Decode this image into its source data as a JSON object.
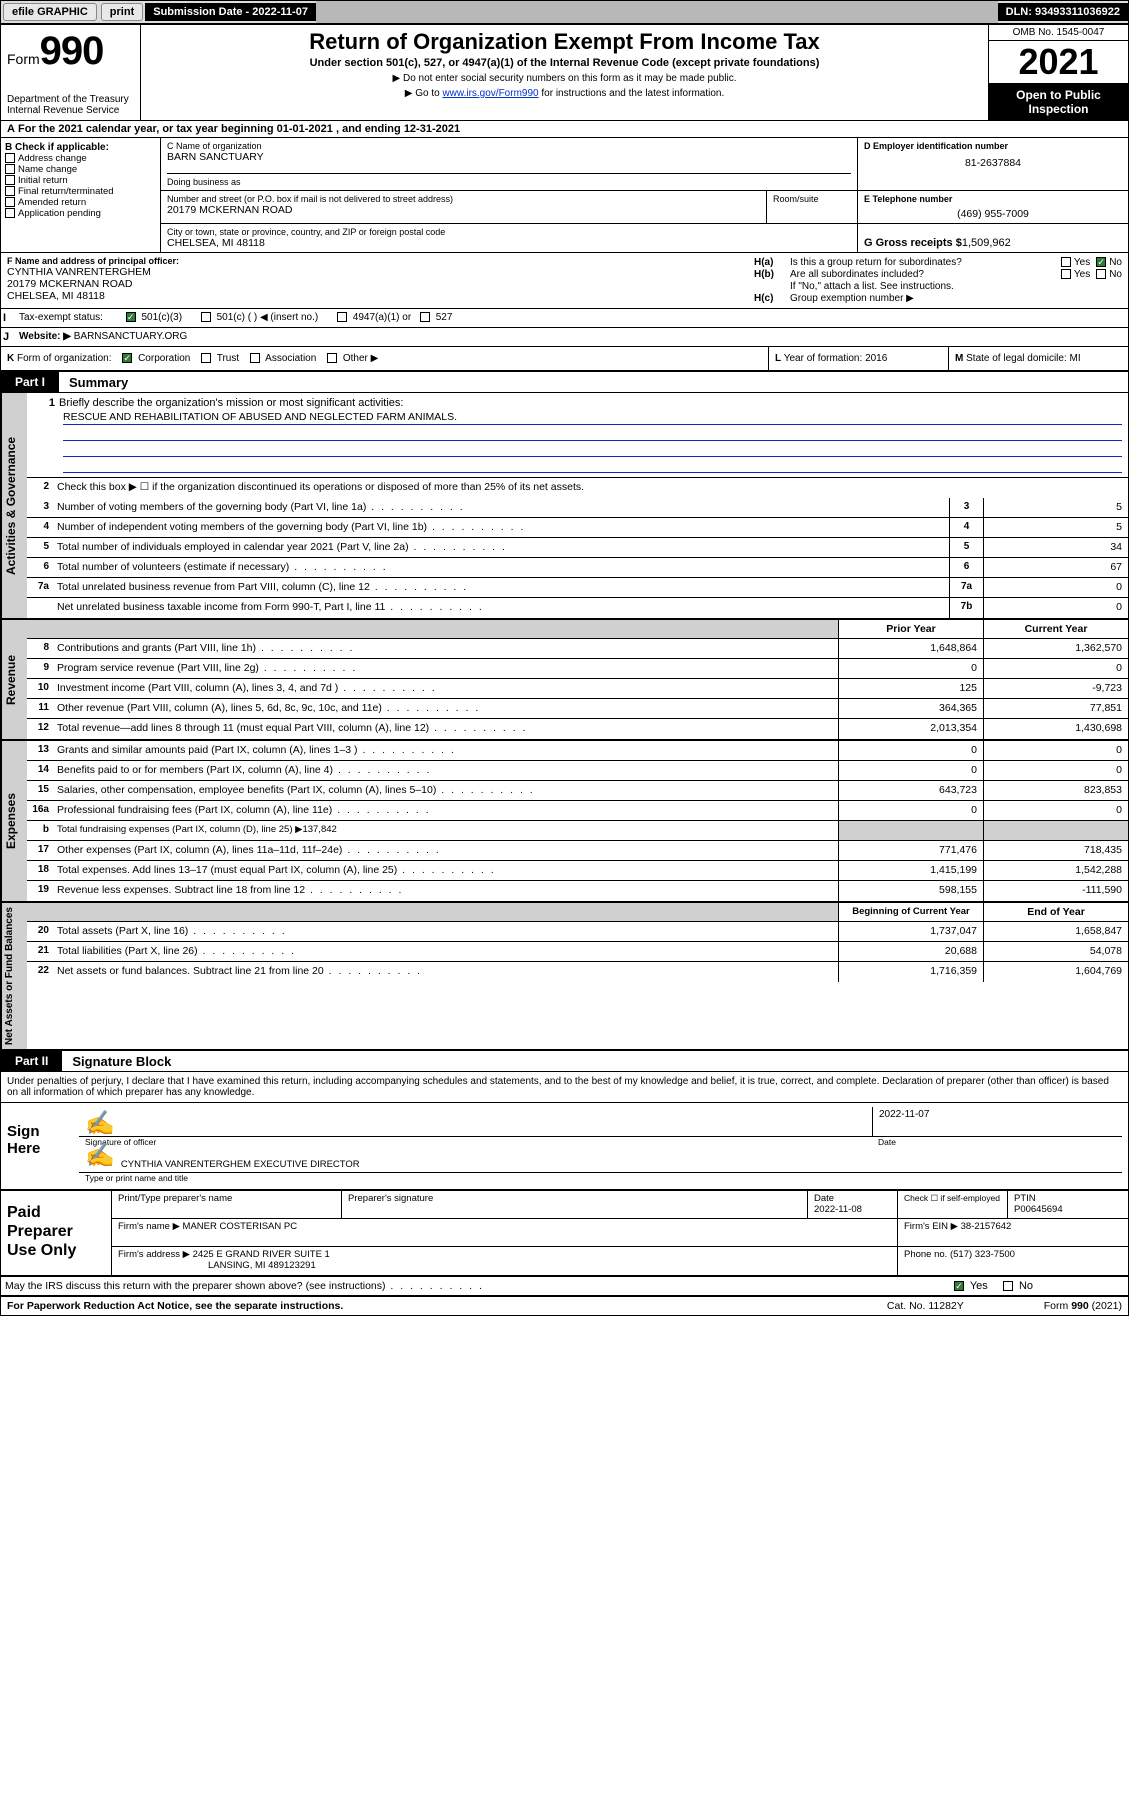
{
  "topbar": {
    "efile": "efile GRAPHIC",
    "print": "print",
    "sub_label": "Submission Date - ",
    "sub_date": "2022-11-07",
    "dln_label": "DLN: ",
    "dln": "93493311036922"
  },
  "header": {
    "form_word": "Form",
    "form_num": "990",
    "dept": "Department of the Treasury",
    "irs": "Internal Revenue Service",
    "title": "Return of Organization Exempt From Income Tax",
    "subtitle": "Under section 501(c), 527, or 4947(a)(1) of the Internal Revenue Code (except private foundations)",
    "note1": "▶ Do not enter social security numbers on this form as it may be made public.",
    "note2_pre": "▶ Go to ",
    "note2_link": "www.irs.gov/Form990",
    "note2_post": " for instructions and the latest information.",
    "omb": "OMB No. 1545-0047",
    "year": "2021",
    "open": "Open to Public Inspection"
  },
  "row_a": {
    "a": "A",
    "text": "For the 2021 calendar year, or tax year beginning ",
    "begin": "01-01-2021",
    "mid": " , and ending ",
    "end": "12-31-2021"
  },
  "col_b": {
    "label": "B Check if applicable:",
    "items": [
      "Address change",
      "Name change",
      "Initial return",
      "Final return/terminated",
      "Amended return",
      "Application pending"
    ]
  },
  "col_c": {
    "c_label": "C Name of organization",
    "org_name": "BARN SANCTUARY",
    "dba_label": "Doing business as",
    "dba": "",
    "street_label": "Number and street (or P.O. box if mail is not delivered to street address)",
    "room_label": "Room/suite",
    "street": "20179 MCKERNAN ROAD",
    "city_label": "City or town, state or province, country, and ZIP or foreign postal code",
    "city": "CHELSEA, MI  48118"
  },
  "col_d": {
    "d_label": "D Employer identification number",
    "ein": "81-2637884",
    "e_label": "E Telephone number",
    "phone": "(469) 955-7009",
    "g_label": "G Gross receipts $ ",
    "gross": "1,509,962"
  },
  "row_f": {
    "f_label": "F Name and address of principal officer:",
    "name": "CYNTHIA VANRENTERGHEM",
    "addr1": "20179 MCKERNAN ROAD",
    "addr2": "CHELSEA, MI  48118",
    "ha_label": "H(a)",
    "ha_text": " Is this a group return for subordinates?",
    "hb_label": "H(b)",
    "hb_text": " Are all subordinates included?",
    "hb_note": "If \"No,\" attach a list. See instructions.",
    "hc_label": "H(c)",
    "hc_text": " Group exemption number ▶",
    "yes": "Yes",
    "no": "No"
  },
  "row_i": {
    "i": "I",
    "label": "Tax-exempt status:",
    "opts": [
      "501(c)(3)",
      "501(c) (  ) ◀ (insert no.)",
      "4947(a)(1) or",
      "527"
    ]
  },
  "row_j": {
    "j": "J",
    "label": "Website: ▶",
    "val": "BARNSANCTUARY.ORG"
  },
  "row_k": {
    "k": "K",
    "label": " Form of organization:",
    "opts": [
      "Corporation",
      "Trust",
      "Association",
      "Other ▶"
    ]
  },
  "row_l": {
    "l": "L",
    "text": " Year of formation: ",
    "val": "2016"
  },
  "row_m": {
    "m": "M",
    "text": " State of legal domicile: ",
    "val": "MI"
  },
  "part1": {
    "tab": "Part I",
    "title": "Summary",
    "side_gov": "Activities & Governance",
    "side_rev": "Revenue",
    "side_exp": "Expenses",
    "side_net": "Net Assets or Fund Balances",
    "l1_label": "Briefly describe the organization's mission or most significant activities:",
    "l1_text": "RESCUE AND REHABILITATION OF ABUSED AND NEGLECTED FARM ANIMALS.",
    "l2": "Check this box ▶ ☐ if the organization discontinued its operations or disposed of more than 25% of its net assets.",
    "rows_gov": [
      {
        "n": "3",
        "t": "Number of voting members of the governing body (Part VI, line 1a)",
        "box": "3",
        "v": "5"
      },
      {
        "n": "4",
        "t": "Number of independent voting members of the governing body (Part VI, line 1b)",
        "box": "4",
        "v": "5"
      },
      {
        "n": "5",
        "t": "Total number of individuals employed in calendar year 2021 (Part V, line 2a)",
        "box": "5",
        "v": "34"
      },
      {
        "n": "6",
        "t": "Total number of volunteers (estimate if necessary)",
        "box": "6",
        "v": "67"
      },
      {
        "n": "7a",
        "t": "Total unrelated business revenue from Part VIII, column (C), line 12",
        "box": "7a",
        "v": "0"
      },
      {
        "n": "",
        "t": "Net unrelated business taxable income from Form 990-T, Part I, line 11",
        "box": "7b",
        "v": "0"
      }
    ],
    "hdr_prior": "Prior Year",
    "hdr_current": "Current Year",
    "rows_rev": [
      {
        "n": "8",
        "t": "Contributions and grants (Part VIII, line 1h)",
        "p": "1,648,864",
        "c": "1,362,570"
      },
      {
        "n": "9",
        "t": "Program service revenue (Part VIII, line 2g)",
        "p": "0",
        "c": "0"
      },
      {
        "n": "10",
        "t": "Investment income (Part VIII, column (A), lines 3, 4, and 7d )",
        "p": "125",
        "c": "-9,723"
      },
      {
        "n": "11",
        "t": "Other revenue (Part VIII, column (A), lines 5, 6d, 8c, 9c, 10c, and 11e)",
        "p": "364,365",
        "c": "77,851"
      },
      {
        "n": "12",
        "t": "Total revenue—add lines 8 through 11 (must equal Part VIII, column (A), line 12)",
        "p": "2,013,354",
        "c": "1,430,698"
      }
    ],
    "rows_exp": [
      {
        "n": "13",
        "t": "Grants and similar amounts paid (Part IX, column (A), lines 1–3 )",
        "p": "0",
        "c": "0"
      },
      {
        "n": "14",
        "t": "Benefits paid to or for members (Part IX, column (A), line 4)",
        "p": "0",
        "c": "0"
      },
      {
        "n": "15",
        "t": "Salaries, other compensation, employee benefits (Part IX, column (A), lines 5–10)",
        "p": "643,723",
        "c": "823,853"
      },
      {
        "n": "16a",
        "t": "Professional fundraising fees (Part IX, column (A), line 11e)",
        "p": "0",
        "c": "0"
      }
    ],
    "l16b_label": "b",
    "l16b_text": " Total fundraising expenses (Part IX, column (D), line 25) ▶",
    "l16b_val": "137,842",
    "rows_exp2": [
      {
        "n": "17",
        "t": "Other expenses (Part IX, column (A), lines 11a–11d, 11f–24e)",
        "p": "771,476",
        "c": "718,435"
      },
      {
        "n": "18",
        "t": "Total expenses. Add lines 13–17 (must equal Part IX, column (A), line 25)",
        "p": "1,415,199",
        "c": "1,542,288"
      },
      {
        "n": "19",
        "t": "Revenue less expenses. Subtract line 18 from line 12",
        "p": "598,155",
        "c": "-111,590"
      }
    ],
    "hdr_begin": "Beginning of Current Year",
    "hdr_end": "End of Year",
    "rows_net": [
      {
        "n": "20",
        "t": "Total assets (Part X, line 16)",
        "p": "1,737,047",
        "c": "1,658,847"
      },
      {
        "n": "21",
        "t": "Total liabilities (Part X, line 26)",
        "p": "20,688",
        "c": "54,078"
      },
      {
        "n": "22",
        "t": "Net assets or fund balances. Subtract line 21 from line 20",
        "p": "1,716,359",
        "c": "1,604,769"
      }
    ]
  },
  "part2": {
    "tab": "Part II",
    "title": "Signature Block",
    "penalty": "Under penalties of perjury, I declare that I have examined this return, including accompanying schedules and statements, and to the best of my knowledge and belief, it is true, correct, and complete. Declaration of preparer (other than officer) is based on all information of which preparer has any knowledge.",
    "sign_here": "Sign Here",
    "sig_officer": "Signature of officer",
    "sig_date_val": "2022-11-07",
    "date": "Date",
    "officer_name": "CYNTHIA VANRENTERGHEM  EXECUTIVE DIRECTOR",
    "type_name": "Type or print name and title",
    "paid_prep": "Paid Preparer Use Only",
    "pp_name_lab": "Print/Type preparer's name",
    "pp_sig_lab": "Preparer's signature",
    "pp_date_lab": "Date",
    "pp_date": "2022-11-08",
    "pp_check": "Check ☐ if self-employed",
    "ptin_lab": "PTIN",
    "ptin": "P00645694",
    "firm_name_lab": "Firm's name    ▶ ",
    "firm_name": "MANER COSTERISAN PC",
    "firm_ein_lab": "Firm's EIN ▶ ",
    "firm_ein": "38-2157642",
    "firm_addr_lab": "Firm's address ▶ ",
    "firm_addr1": "2425 E GRAND RIVER SUITE 1",
    "firm_addr2": "LANSING, MI  489123291",
    "firm_phone_lab": "Phone no. ",
    "firm_phone": "(517) 323-7500",
    "discuss": "May the IRS discuss this return with the preparer shown above? (see instructions)",
    "yes": "Yes",
    "no": "No"
  },
  "footer": {
    "left": "For Paperwork Reduction Act Notice, see the separate instructions.",
    "mid": "Cat. No. 11282Y",
    "right_pre": "Form ",
    "right_form": "990",
    "right_post": " (2021)"
  }
}
